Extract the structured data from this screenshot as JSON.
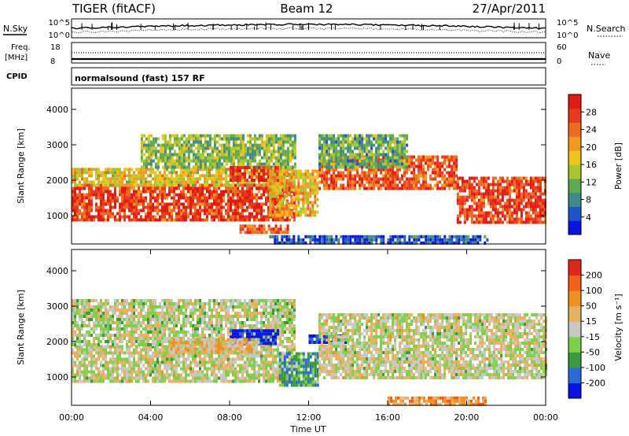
{
  "header": {
    "radar_title": "TIGER (fitACF)",
    "beam_label": "Beam 12",
    "date": "27/Apr/2011"
  },
  "top_strip": {
    "nsky_label": "N.Sky",
    "nsearch_label": "N.Search",
    "left_ticks": [
      "10^5",
      "10^0"
    ],
    "right_ticks": [
      "10^5",
      "10^0"
    ],
    "freq_label": "Freq.",
    "freq_unit": "[MHz]",
    "freq_ticks": [
      "18",
      "8"
    ],
    "nave_ticks": [
      "60",
      "0"
    ],
    "nave_label": "Nave",
    "cpid_label": "CPID",
    "cpid_text": "normalsound (fast) 157 RF"
  },
  "chart_data": [
    {
      "type": "heatmap",
      "panel": "power",
      "ylabel": "Slant Range [km]",
      "xlabel": "",
      "ylim": [
        200,
        4600
      ],
      "yticks": [
        1000,
        2000,
        3000,
        4000
      ],
      "xlim": [
        0,
        24
      ],
      "colorbar": {
        "label": "Power [dB]",
        "ticks": [
          "4",
          "8",
          "12",
          "16",
          "20",
          "24",
          "28"
        ],
        "colors": [
          "#0a14e6",
          "#1f55c8",
          "#3f8b86",
          "#62a84e",
          "#a8c72e",
          "#f0c21c",
          "#f29a1e",
          "#ef6a20",
          "#ea3a1c",
          "#e01a14"
        ]
      },
      "bands": [
        {
          "hours": [
            0,
            11.3
          ],
          "range": [
            850,
            1900
          ],
          "level": 0.85
        },
        {
          "hours": [
            0,
            11.3
          ],
          "range": [
            1900,
            2350
          ],
          "level": 0.55
        },
        {
          "hours": [
            3.5,
            11.3
          ],
          "range": [
            2350,
            3300
          ],
          "level": 0.4
        },
        {
          "hours": [
            8,
            10.5
          ],
          "range": [
            2000,
            2400
          ],
          "level": 0.9
        },
        {
          "hours": [
            12.5,
            19.5
          ],
          "range": [
            1750,
            2700
          ],
          "level": 0.8
        },
        {
          "hours": [
            12.5,
            17
          ],
          "range": [
            2400,
            3300
          ],
          "level": 0.35
        },
        {
          "hours": [
            19.5,
            24
          ],
          "range": [
            850,
            2100
          ],
          "level": 0.85
        },
        {
          "hours": [
            10,
            12.5
          ],
          "range": [
            1000,
            2300
          ],
          "level": 0.6
        },
        {
          "hours": [
            8.5,
            11
          ],
          "range": [
            550,
            750
          ],
          "level": 0.8
        },
        {
          "hours": [
            10,
            21
          ],
          "range": [
            250,
            450
          ],
          "level": 0.15
        }
      ]
    },
    {
      "type": "heatmap",
      "panel": "velocity",
      "ylabel": "Slant Range [km]",
      "xlabel": "Time UT",
      "ylim": [
        200,
        4600
      ],
      "yticks": [
        1000,
        2000,
        3000,
        4000
      ],
      "xlim": [
        0,
        24
      ],
      "xticks": [
        "00:00",
        "04:00",
        "08:00",
        "12:00",
        "16:00",
        "20:00",
        "00:00"
      ],
      "colorbar": {
        "label": "Velocity [m s⁻¹]",
        "ticks": [
          "200",
          "100",
          "50",
          "15",
          "-15",
          "-50",
          "-100",
          "-200"
        ],
        "colors": [
          "#0a14e6",
          "#2a6ad8",
          "#3a9a3a",
          "#7ed04a",
          "#c8c8c4",
          "#e8b060",
          "#f09020",
          "#f06018",
          "#e02818"
        ]
      },
      "bands": [
        {
          "hours": [
            0,
            11.3
          ],
          "range": [
            850,
            1900
          ],
          "level": 0.5
        },
        {
          "hours": [
            0,
            11.3
          ],
          "range": [
            1900,
            3200
          ],
          "level": 0.48
        },
        {
          "hours": [
            8,
            10.5
          ],
          "range": [
            1950,
            2350
          ],
          "level": 0.02
        },
        {
          "hours": [
            10.5,
            12.5
          ],
          "range": [
            800,
            1700
          ],
          "level": 0.3
        },
        {
          "hours": [
            12,
            14
          ],
          "range": [
            1950,
            2200
          ],
          "level": 0.05
        },
        {
          "hours": [
            12.5,
            24
          ],
          "range": [
            1000,
            2800
          ],
          "level": 0.5
        },
        {
          "hours": [
            5,
            9.5
          ],
          "range": [
            1700,
            2100
          ],
          "level": 0.6
        },
        {
          "hours": [
            16,
            21
          ],
          "range": [
            250,
            450
          ],
          "level": 0.7
        }
      ]
    }
  ]
}
